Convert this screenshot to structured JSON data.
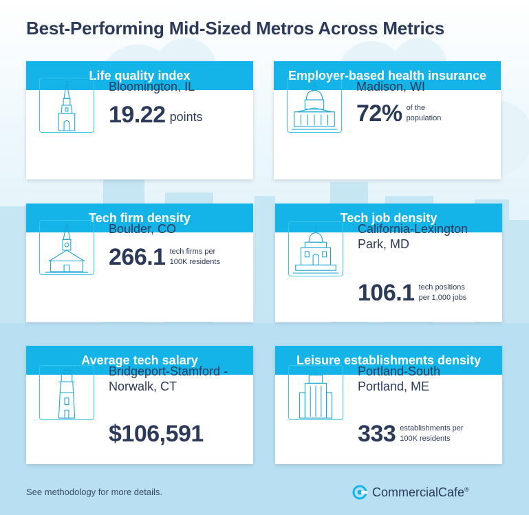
{
  "title": "Best-Performing Mid-Sized Metros Across Metrics",
  "cards": [
    {
      "header": "Life quality index",
      "city": "Bloomington, IL",
      "value": "19.22",
      "unit": "points",
      "icon": "church-spire-icon"
    },
    {
      "header": "Employer-based health insurance",
      "city": "Madison, WI",
      "value": "72%",
      "unit": "of the population",
      "icon": "capitol-dome-icon"
    },
    {
      "header": "Tech firm density",
      "city": "Boulder, CO",
      "value": "266.1",
      "unit": "tech firms per 100K residents",
      "icon": "chapel-icon"
    },
    {
      "header": "Tech job density",
      "city": "California-Lexington Park, MD",
      "value": "106.1",
      "unit": "tech positions per 1,000 jobs",
      "icon": "courthouse-dome-icon"
    },
    {
      "header": "Average tech salary",
      "city": "Bridgeport-Stamford -Norwalk, CT",
      "value": "$106,591",
      "unit": "",
      "icon": "lighthouse-icon"
    },
    {
      "header": "Leisure establishments density",
      "city": "Portland-South Portland, ME",
      "value": "333",
      "unit": "establishments per 100K residents",
      "icon": "skyscraper-icon"
    }
  ],
  "footnote": "See methodology for more details.",
  "logo": {
    "name": "CommercialCafe",
    "mark": "®"
  },
  "colors": {
    "accent": "#14b4e9",
    "text": "#2b3a58",
    "icon_stroke": "#1aa3d6",
    "background_sky": "#dff1f9"
  }
}
